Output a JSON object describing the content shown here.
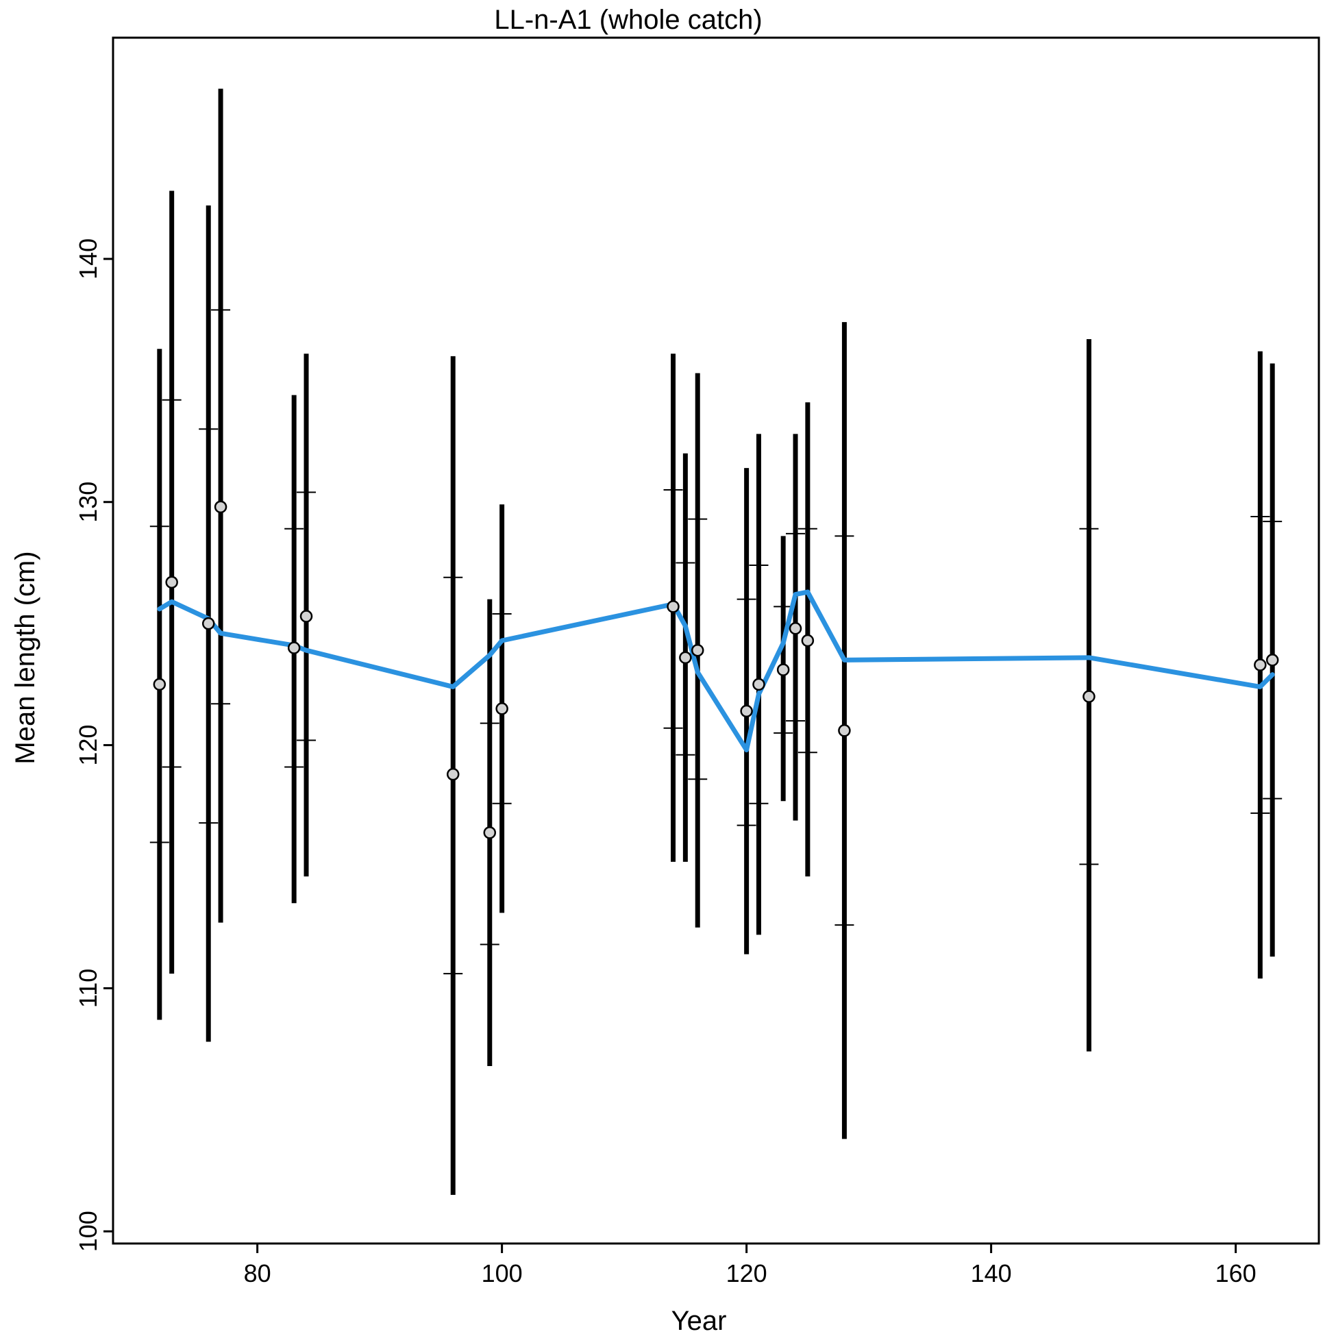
{
  "chart_data": {
    "type": "scatter",
    "title": "LL-n-A1 (whole catch)",
    "xlabel": "Year",
    "ylabel": "Mean length (cm)",
    "xlim": [
      68.2,
      166.8
    ],
    "ylim": [
      99.5,
      149.1
    ],
    "xticks": [
      80,
      100,
      120,
      140,
      160
    ],
    "yticks": [
      100,
      110,
      120,
      130,
      140
    ],
    "grid": false,
    "colors": {
      "observed_point_fill": "#d3d3d3",
      "error_bar": "#000000",
      "expected_line": "#2b92e0"
    },
    "series": [
      {
        "type": "scatter",
        "x": [
          72,
          73,
          76,
          77,
          83,
          84,
          96,
          99,
          100,
          114,
          115,
          116,
          120,
          121,
          123,
          124,
          125,
          128,
          148,
          162,
          163
        ],
        "y": [
          122.5,
          126.7,
          125,
          129.8,
          124,
          125.3,
          118.8,
          116.4,
          121.5,
          125.7,
          123.6,
          123.9,
          121.4,
          122.5,
          123.1,
          124.8,
          124.3,
          120.6,
          122,
          123.3,
          123.5
        ],
        "ci_outer_low": [
          108.7,
          110.6,
          107.8,
          112.7,
          113.5,
          114.6,
          101.5,
          106.8,
          113.1,
          115.2,
          115.2,
          112.5,
          111.4,
          112.2,
          117.7,
          116.9,
          114.6,
          103.8,
          107.4,
          110.4,
          111.3
        ],
        "ci_outer_high": [
          136.3,
          142.8,
          142.2,
          147,
          134.4,
          136.1,
          136,
          126,
          129.9,
          136.1,
          132,
          135.3,
          131.4,
          132.8,
          128.6,
          132.8,
          134.1,
          137.4,
          136.7,
          136.2,
          135.7
        ],
        "ci_inner_low": [
          116,
          119.1,
          116.8,
          121.7,
          119.1,
          120.2,
          110.6,
          111.8,
          117.6,
          120.7,
          119.6,
          118.6,
          116.7,
          117.6,
          120.5,
          121,
          119.7,
          112.6,
          115.1,
          117.2,
          117.8
        ],
        "ci_inner_high": [
          129,
          134.2,
          133,
          137.9,
          128.9,
          130.4,
          126.9,
          120.9,
          125.4,
          130.5,
          127.5,
          129.3,
          126,
          127.4,
          125.7,
          128.7,
          128.9,
          128.6,
          128.9,
          129.4,
          129.2
        ]
      },
      {
        "type": "line",
        "x": [
          72,
          73,
          76,
          77,
          83,
          84,
          96,
          99,
          100,
          114,
          115,
          116,
          120,
          121,
          123,
          124,
          125,
          128,
          148,
          162,
          163
        ],
        "y": [
          125.6,
          125.9,
          125.2,
          124.6,
          124.1,
          123.9,
          122.4,
          123.7,
          124.3,
          125.8,
          124.9,
          123,
          119.8,
          122.1,
          124.2,
          126.2,
          126.3,
          123.5,
          123.6,
          122.4,
          122.9
        ]
      }
    ]
  }
}
